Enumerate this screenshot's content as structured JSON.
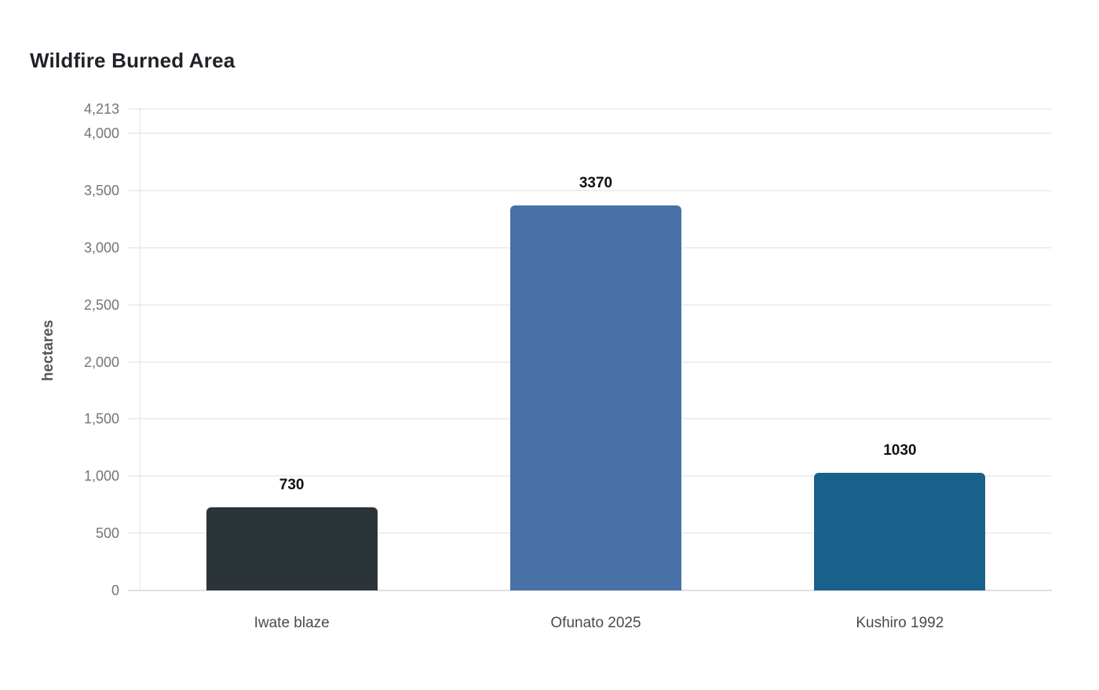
{
  "chart_data": {
    "type": "bar",
    "title": "Wildfire Burned Area",
    "xlabel": "",
    "ylabel": "hectares",
    "categories": [
      "Iwate blaze",
      "Ofunato 2025",
      "Kushiro 1992"
    ],
    "values": [
      730,
      3370,
      1030
    ],
    "value_labels": [
      "730",
      "3370",
      "1030"
    ],
    "bar_colors": [
      "#2b3438",
      "#4a70a8",
      "#17618c"
    ],
    "yticks": [
      0,
      500,
      1000,
      1500,
      2000,
      2500,
      3000,
      3500,
      4000,
      4213
    ],
    "ytick_labels": [
      "0",
      "500",
      "1,000",
      "1,500",
      "2,000",
      "2,500",
      "3,000",
      "3,500",
      "4,000",
      "4,213"
    ],
    "ylim": [
      0,
      4213
    ],
    "grid": true,
    "legend": false,
    "orientation": "vertical"
  },
  "style": {
    "background": "#ffffff",
    "title_color": "#1f2227",
    "ylabel_color": "#555555",
    "tick_label_color": "#757575",
    "category_label_color": "#4a4a4a",
    "value_label_color": "#111111",
    "grid_color": "#efefef",
    "baseline_color": "#e0e0e0",
    "axis_dotted_color": "#cccccc"
  }
}
